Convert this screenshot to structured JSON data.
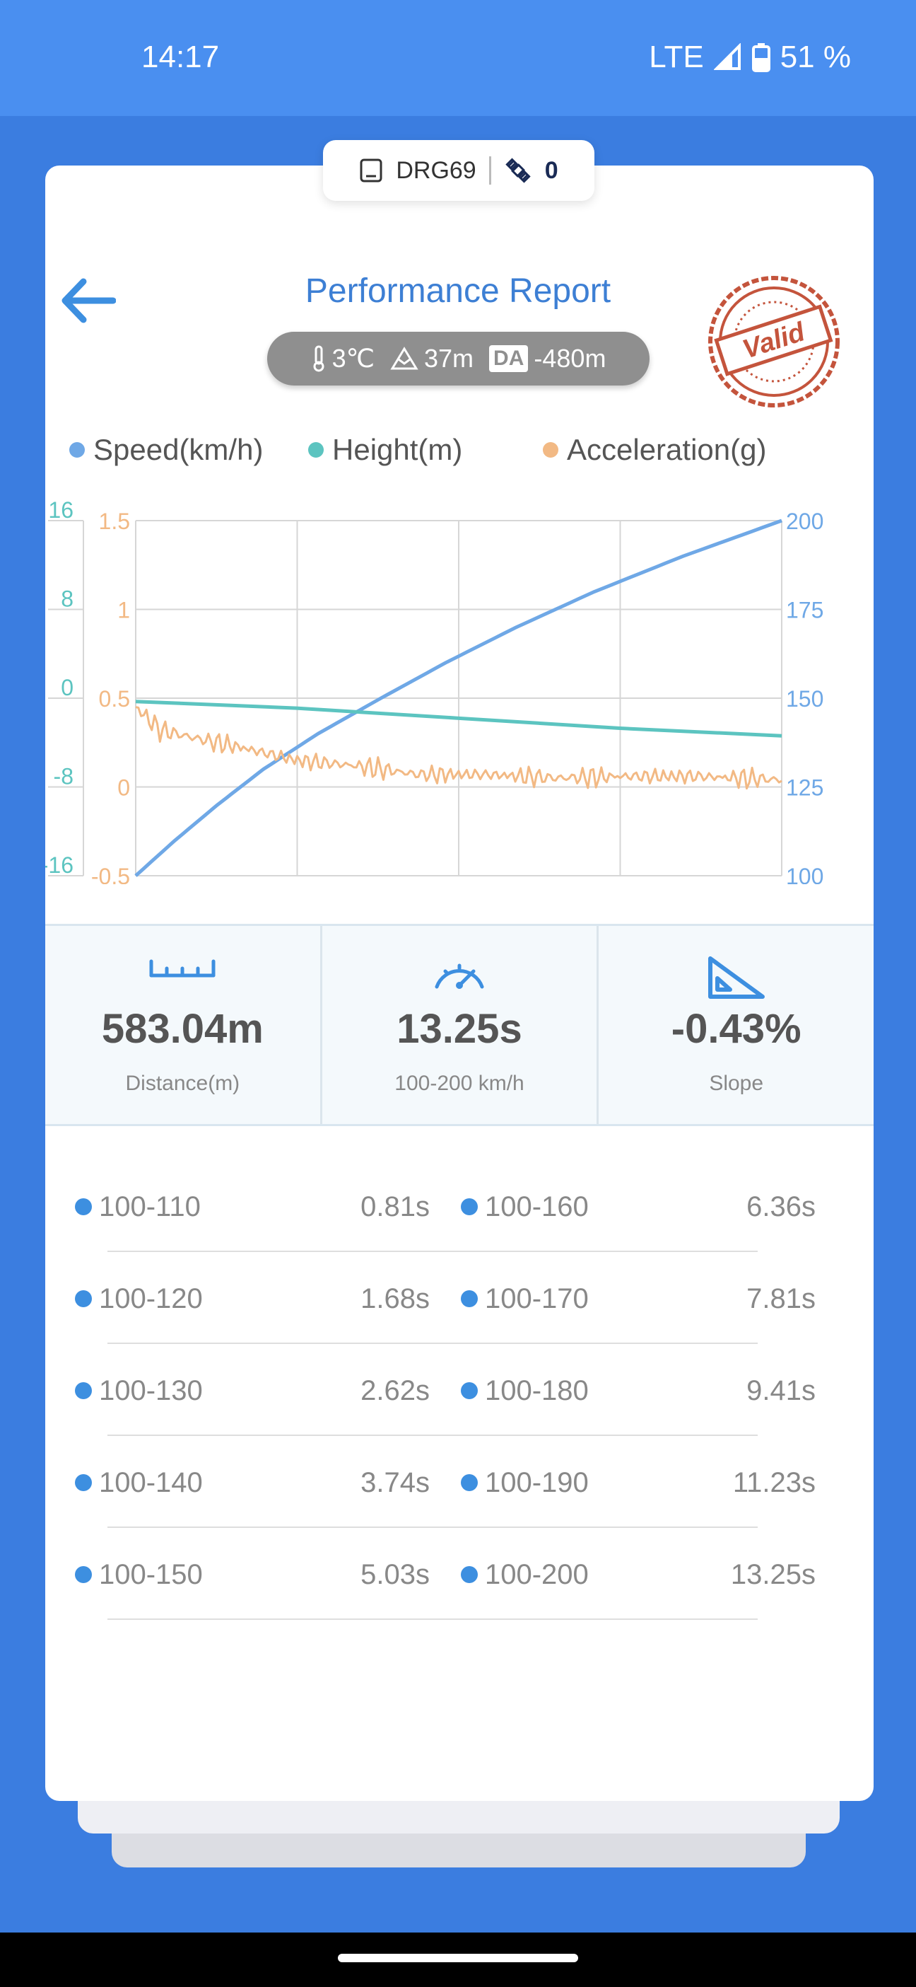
{
  "status_bar": {
    "time": "14:17",
    "network": "LTE",
    "battery": "51 %"
  },
  "device": {
    "name": "DRG69",
    "satellites": "0"
  },
  "header": {
    "title": "Performance Report",
    "stamp_text": "Valid"
  },
  "conditions": {
    "temperature": "3℃",
    "altitude": "37m",
    "da_label": "DA",
    "density_altitude": "-480m"
  },
  "legend": [
    {
      "label": "Speed(km/h)",
      "color": "#6fa8e6"
    },
    {
      "label": "Height(m)",
      "color": "#5cc4c0"
    },
    {
      "label": "Acceleration(g)",
      "color": "#f2b984"
    }
  ],
  "chart_data": {
    "type": "line",
    "left_axis_height": {
      "ticks": [
        "16",
        "8",
        "0",
        "-8",
        "-16"
      ],
      "ylim": [
        -16,
        16
      ],
      "color": "#5cc4c0"
    },
    "left_axis_acceleration": {
      "ticks": [
        "1.5",
        "1",
        "0.5",
        "0",
        "-0.5"
      ],
      "ylim": [
        -0.5,
        1.5
      ],
      "color": "#f2b984"
    },
    "right_axis_speed": {
      "ticks": [
        "200",
        "175",
        "150",
        "125",
        "100"
      ],
      "ylim": [
        100,
        200
      ],
      "color": "#6fa8e6"
    },
    "x_range_s": [
      0,
      13.25
    ],
    "grid": true,
    "series": [
      {
        "name": "Speed(km/h)",
        "axis": "speed",
        "color": "#6fa8e6",
        "x": [
          0,
          0.81,
          1.68,
          2.62,
          3.74,
          5.03,
          6.36,
          7.81,
          9.41,
          11.23,
          13.25
        ],
        "y": [
          100,
          110,
          120,
          130,
          140,
          150,
          160,
          170,
          180,
          190,
          200
        ]
      },
      {
        "name": "Height(m)",
        "axis": "height",
        "color": "#5cc4c0",
        "x": [
          0,
          3.3,
          6.6,
          9.9,
          13.25
        ],
        "y": [
          -0.3,
          -0.9,
          -1.8,
          -2.7,
          -3.4
        ]
      },
      {
        "name": "Acceleration(g)",
        "axis": "acceleration",
        "color": "#f2b984",
        "x": [
          0,
          0.5,
          1.3,
          2.2,
          3.3,
          4.5,
          5.8,
          7.2,
          8.6,
          10.0,
          11.5,
          13.25
        ],
        "y": [
          0.45,
          0.32,
          0.27,
          0.22,
          0.15,
          0.12,
          0.07,
          0.07,
          0.05,
          0.06,
          0.06,
          0.04
        ]
      }
    ]
  },
  "stats": [
    {
      "value": "583.04m",
      "label": "Distance(m)",
      "icon": "ruler-icon"
    },
    {
      "value": "13.25s",
      "label": "100-200 km/h",
      "icon": "speedometer-icon"
    },
    {
      "value": "-0.43%",
      "label": "Slope",
      "icon": "slope-icon"
    }
  ],
  "splits": [
    {
      "left_range": "100-110",
      "left_time": "0.81s",
      "right_range": "100-160",
      "right_time": "6.36s"
    },
    {
      "left_range": "100-120",
      "left_time": "1.68s",
      "right_range": "100-170",
      "right_time": "7.81s"
    },
    {
      "left_range": "100-130",
      "left_time": "2.62s",
      "right_range": "100-180",
      "right_time": "9.41s"
    },
    {
      "left_range": "100-140",
      "left_time": "3.74s",
      "right_range": "100-190",
      "right_time": "11.23s"
    },
    {
      "left_range": "100-150",
      "left_time": "5.03s",
      "right_range": "100-200",
      "right_time": "13.25s"
    }
  ]
}
